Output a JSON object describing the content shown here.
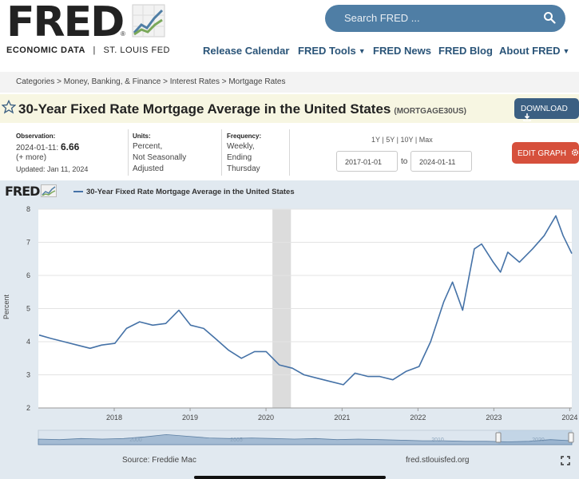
{
  "header": {
    "logo": "FRED",
    "tagline_bold": "ECONOMIC DATA",
    "tagline_sep": "|",
    "tagline_org": "ST. LOUIS FED",
    "search_placeholder": "Search FRED ...",
    "nav": [
      "Release Calendar",
      "FRED Tools",
      "FRED News",
      "FRED Blog",
      "About FRED"
    ]
  },
  "breadcrumb": "Categories > Money, Banking, & Finance > Interest Rates > Mortgage Rates",
  "series": {
    "title": "30-Year Fixed Rate Mortgage Average in the United States",
    "id": "(MORTGAGE30US)",
    "download_label": "DOWNLOAD"
  },
  "meta": {
    "observation_label": "Observation:",
    "observation_date": "2024-01-11:",
    "observation_value": "6.66",
    "more": "(+ more)",
    "updated": "Updated: Jan 11, 2024",
    "units_label": "Units:",
    "units": [
      "Percent,",
      "Not Seasonally",
      "Adjusted"
    ],
    "frequency_label": "Frequency:",
    "frequency": [
      "Weekly,",
      "Ending",
      "Thursday"
    ]
  },
  "controls": {
    "ranges": [
      "1Y",
      "5Y",
      "10Y",
      "Max"
    ],
    "range_sep": "|",
    "start_date": "2017-01-01",
    "to_label": "to",
    "end_date": "2024-01-11",
    "edit_label": "EDIT GRAPH"
  },
  "graph": {
    "brand": "FRED",
    "legend": "30-Year Fixed Rate Mortgage Average in the United States",
    "source": "Source: Freddie Mac",
    "url": "fred.stlouisfed.org",
    "navigator_labels": [
      "2000",
      "2005",
      "2010",
      "2020"
    ]
  },
  "colors": {
    "line": "#4572a7",
    "recession": "#dcdcdc",
    "graph_bg": "#e1e9f0",
    "edit_button": "#d6503c",
    "download_button": "#3b5f82",
    "title_bar": "#f7f6e2"
  },
  "chart_data": {
    "type": "line",
    "ylabel": "Percent",
    "ylim": [
      2,
      8
    ],
    "yticks": [
      "2",
      "3",
      "4",
      "5",
      "6",
      "7",
      "8"
    ],
    "xticks": [
      "2018",
      "2019",
      "2020",
      "2021",
      "2022",
      "2023",
      "2024"
    ],
    "xlim": [
      "2017-01-01",
      "2024-01-11"
    ],
    "grid": "horizontal",
    "recession": [
      "2020-02-01",
      "2020-04-30"
    ],
    "series": [
      {
        "x": [
          "2017-01-05",
          "2017-03-02",
          "2017-05-04",
          "2017-07-06",
          "2017-09-07",
          "2017-11-02",
          "2018-01-04",
          "2018-03-01",
          "2018-05-03",
          "2018-07-05",
          "2018-09-06",
          "2018-11-08",
          "2019-01-03",
          "2019-03-07",
          "2019-05-02",
          "2019-07-04",
          "2019-09-05",
          "2019-11-07",
          "2020-01-02",
          "2020-03-05",
          "2020-05-07",
          "2020-07-02",
          "2020-09-03",
          "2020-11-05",
          "2021-01-07",
          "2021-03-04",
          "2021-05-06",
          "2021-07-01",
          "2021-09-02",
          "2021-11-04",
          "2022-01-06",
          "2022-03-03",
          "2022-05-05",
          "2022-06-16",
          "2022-08-04",
          "2022-09-29",
          "2022-11-03",
          "2022-12-29",
          "2023-02-02",
          "2023-03-09",
          "2023-05-04",
          "2023-07-06",
          "2023-08-31",
          "2023-10-26",
          "2023-11-30",
          "2024-01-11"
        ],
        "y": [
          4.2,
          4.1,
          4.0,
          3.9,
          3.8,
          3.9,
          3.95,
          4.4,
          4.6,
          4.5,
          4.55,
          4.95,
          4.5,
          4.4,
          4.1,
          3.75,
          3.5,
          3.7,
          3.7,
          3.3,
          3.2,
          3.0,
          2.9,
          2.8,
          2.7,
          3.05,
          2.95,
          2.95,
          2.85,
          3.1,
          3.25,
          4.0,
          5.2,
          5.8,
          4.95,
          6.8,
          6.95,
          6.4,
          6.1,
          6.7,
          6.4,
          6.8,
          7.2,
          7.8,
          7.2,
          6.66
        ]
      }
    ]
  }
}
